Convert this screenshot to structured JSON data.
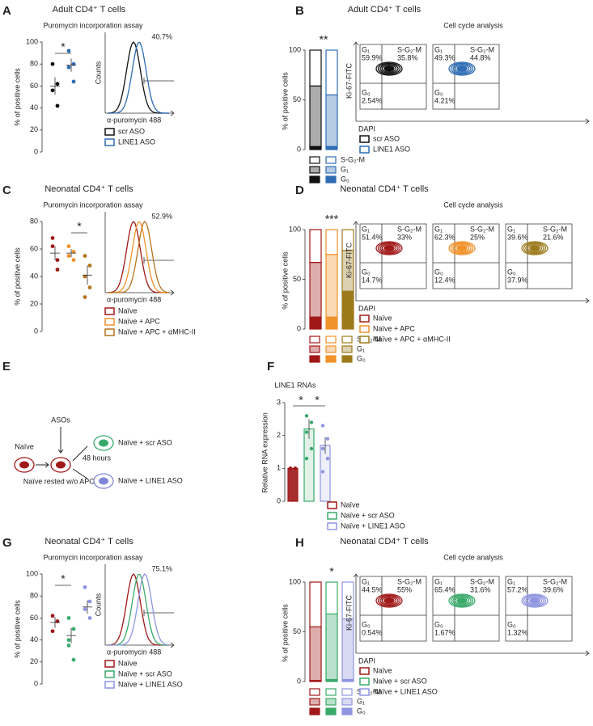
{
  "chart_data": [
    {
      "type": "dot",
      "panel": "A",
      "title": "Adult CD4⁺ T cells",
      "subtitle": "Puromycin incorporation assay",
      "ylabel": "% of positive cells",
      "ylim": [
        0,
        100
      ],
      "yticks": [
        0,
        20,
        40,
        60,
        80,
        100
      ],
      "significance": "*",
      "series": [
        {
          "name": "scr ASO",
          "color": "#111111",
          "values": [
            80,
            62,
            56,
            42
          ],
          "mean": 60,
          "sem": 8
        },
        {
          "name": "LINE1 ASO",
          "color": "#2e6db4",
          "values": [
            92,
            80,
            77,
            64
          ],
          "mean": 79,
          "sem": 6
        }
      ],
      "histogram": {
        "gate": "40.7%",
        "ylabel": "Counts",
        "xlabel": "α-puromycin 488"
      }
    },
    {
      "type": "stacked_bar",
      "panel": "B",
      "title": "Adult CD4⁺ T cells",
      "ylabel": "% of positive cells",
      "ylim": [
        0,
        100
      ],
      "yticks": [
        0,
        50,
        100
      ],
      "significance": "**",
      "categories": [
        "scr ASO",
        "LINE1 ASO"
      ],
      "colors": [
        "#111111",
        "#2e6db4"
      ],
      "series": [
        {
          "name": "S-G₂-M",
          "style": "outline",
          "values": [
            36,
            45
          ]
        },
        {
          "name": "G₁",
          "style": "light",
          "values": [
            61,
            52
          ]
        },
        {
          "name": "G₀",
          "style": "solid",
          "values": [
            3,
            3
          ]
        }
      ],
      "contour": {
        "title": "Cell cycle analysis",
        "ylabel": "Ki-67-FITC",
        "xlabel": "DAPI",
        "quadrants": [
          "G₁",
          "S-G₂-M",
          "G₀"
        ],
        "plots": [
          {
            "g1": "59.9%",
            "sgm": "35.8%",
            "g0": "2.54%"
          },
          {
            "g1": "49.3%",
            "sgm": "44.8%",
            "g0": "4.21%"
          }
        ]
      }
    },
    {
      "type": "dot",
      "panel": "C",
      "title": "Neonatal CD4⁺ T cells",
      "subtitle": "Puromycin incorporation assay",
      "ylabel": "% of positive cells",
      "ylim": [
        0,
        80
      ],
      "yticks": [
        0,
        20,
        40,
        60,
        80
      ],
      "significance": "*",
      "series": [
        {
          "name": "Naïve",
          "color": "#a01818",
          "values": [
            62,
            52,
            68,
            45
          ],
          "mean": 57,
          "sem": 5
        },
        {
          "name": "Naïve + APC",
          "color": "#f0922a",
          "values": [
            62,
            58,
            55,
            52
          ],
          "mean": 57,
          "sem": 3
        },
        {
          "name": "Naïve + APC  + αMHC-II",
          "color": "#b5741e",
          "values": [
            55,
            48,
            40,
            32,
            25
          ],
          "mean": 41,
          "sem": 7
        }
      ],
      "histogram": {
        "gate": "52.9%",
        "xlabel": "α-puromycin 488"
      }
    },
    {
      "type": "stacked_bar",
      "panel": "D",
      "title": "Neonatal CD4⁺ T cells",
      "ylabel": "% of positive cells",
      "ylim": [
        0,
        100
      ],
      "yticks": [
        0,
        50,
        100
      ],
      "significance": "***",
      "categories": [
        "Naïve",
        "Naïve + APC",
        "Naïve + APC  + αMHC-II"
      ],
      "colors": [
        "#a01818",
        "#f0922a",
        "#9c7a1c"
      ],
      "series": [
        {
          "name": "S-G₂-M",
          "style": "outline",
          "values": [
            33,
            25,
            21
          ]
        },
        {
          "name": "G₁",
          "style": "light",
          "values": [
            55,
            63,
            41
          ]
        },
        {
          "name": "G₀",
          "style": "solid",
          "values": [
            12,
            12,
            38
          ]
        }
      ],
      "contour": {
        "title": "Cell cycle analysis",
        "ylabel": "Ki-67-FITC",
        "xlabel": "DAPI",
        "quadrants": [
          "G₁",
          "S-G₂-M",
          "G₀"
        ],
        "plots": [
          {
            "g1": "51.4%",
            "sgm": "33%",
            "g0": "14.7%"
          },
          {
            "g1": "62.3%",
            "sgm": "25%",
            "g0": "12.4%"
          },
          {
            "g1": "39.6%",
            "sgm": "21.6%",
            "g0": "37.9%"
          }
        ]
      }
    },
    {
      "type": "bar",
      "panel": "F",
      "title": "LINE1 RNAs",
      "ylabel": "Relative RNA expression",
      "ylim": [
        0,
        3
      ],
      "yticks": [
        0,
        1,
        2,
        3
      ],
      "significance": [
        "*",
        "*"
      ],
      "categories": [
        "Naïve",
        "Naïve + scr ASO",
        "Naïve + LINE1 ASO"
      ],
      "colors": [
        "#a01818",
        "#3aaa6a",
        "#8f95e0"
      ],
      "values": [
        1,
        2.2,
        1.7
      ],
      "errors": [
        0,
        0.3,
        0.25
      ],
      "points": [
        [
          1,
          1,
          1,
          1,
          1
        ],
        [
          2.6,
          2.4,
          2.1,
          1.6,
          1.3
        ],
        [
          2.3,
          1.9,
          1.6,
          1.3,
          0.9
        ]
      ]
    },
    {
      "type": "dot",
      "panel": "G",
      "title": "Neonatal CD4⁺ T cells",
      "subtitle": "Puromycin incorporation assay",
      "ylabel": "% of positive cells",
      "ylim": [
        0,
        100
      ],
      "yticks": [
        0,
        20,
        40,
        60,
        80,
        100
      ],
      "significance": "*",
      "series": [
        {
          "name": "Naïve",
          "color": "#a01818",
          "values": [
            62,
            57,
            48
          ],
          "mean": 56,
          "sem": 5
        },
        {
          "name": "Naïve + scr ASO",
          "color": "#3aaa6a",
          "values": [
            60,
            50,
            35,
            22,
            40
          ],
          "mean": 44,
          "sem": 7
        },
        {
          "name": "Naïve + LINE1 ASO",
          "color": "#8f95e0",
          "values": [
            88,
            75,
            68,
            60
          ],
          "mean": 70,
          "sem": 6
        }
      ],
      "histogram": {
        "gate": "75.1%",
        "ylabel": "Counts",
        "xlabel": "α-puromycin 488"
      }
    },
    {
      "type": "stacked_bar",
      "panel": "H",
      "title": "Neonatal CD4⁺ T cells",
      "ylabel": "% of positive cells",
      "ylim": [
        0,
        100
      ],
      "yticks": [
        0,
        50,
        100
      ],
      "significance": "*",
      "categories": [
        "Naïve",
        "Naïve + scr ASO",
        "Naïve + LINE1 ASO"
      ],
      "colors": [
        "#a01818",
        "#3aaa6a",
        "#8f95e0"
      ],
      "series": [
        {
          "name": "S-G₂-M",
          "style": "outline",
          "values": [
            45,
            32,
            37
          ]
        },
        {
          "name": "G₁",
          "style": "light",
          "values": [
            54,
            66,
            61
          ]
        },
        {
          "name": "G₀",
          "style": "solid",
          "values": [
            1,
            2,
            2
          ]
        }
      ],
      "contour": {
        "title": "Cell cycle analysis",
        "ylabel": "Ki-67-FITC",
        "xlabel": "DAPI",
        "quadrants": [
          "G₁",
          "S-G₂-M",
          "G₀"
        ],
        "plots": [
          {
            "g1": "44.5%",
            "sgm": "55%",
            "g0": "0.54%"
          },
          {
            "g1": "65.4%",
            "sgm": "31.6%",
            "g0": "1.67%"
          },
          {
            "g1": "57.2%",
            "sgm": "39.6%",
            "g0": "1.32%"
          }
        ]
      }
    }
  ],
  "diagram": {
    "panel": "E",
    "start": "Naïve",
    "treatment": "ASOs",
    "duration": "48 hours",
    "rested": "Naïve rested w/o APCs",
    "outcomes": [
      "Naïve + scr ASO",
      "Naïve + LINE1 ASO"
    ]
  }
}
